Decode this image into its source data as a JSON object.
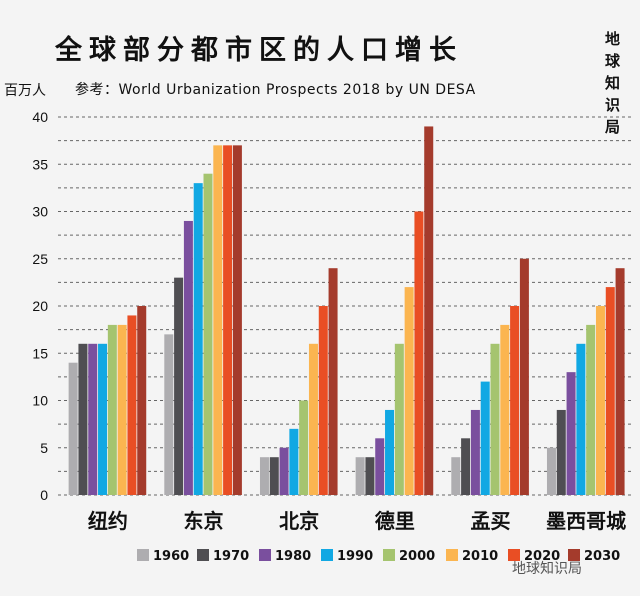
{
  "chart_data": {
    "type": "bar",
    "title": "全球部分都市区的人口增长",
    "subtitle": "参考：World Urbanization Prospects 2018 by UN DESA",
    "ylabel": "百万人",
    "ylim": [
      0,
      40
    ],
    "yticks": [
      0,
      5,
      10,
      15,
      20,
      25,
      30,
      35,
      40
    ],
    "grid": true,
    "legend_position": "bottom",
    "categories": [
      "纽约",
      "东京",
      "北京",
      "德里",
      "孟买",
      "墨西哥城"
    ],
    "series": [
      {
        "name": "1960",
        "color": "#aeadb0",
        "values": [
          14,
          17,
          4,
          4,
          4,
          5
        ]
      },
      {
        "name": "1970",
        "color": "#4f4e52",
        "values": [
          16,
          23,
          4,
          4,
          6,
          9
        ]
      },
      {
        "name": "1980",
        "color": "#7a4f9e",
        "values": [
          16,
          29,
          5,
          6,
          9,
          13
        ]
      },
      {
        "name": "1990",
        "color": "#11a8e3",
        "values": [
          16,
          33,
          7,
          9,
          12,
          16
        ]
      },
      {
        "name": "2000",
        "color": "#a5c46f",
        "values": [
          18,
          34,
          10,
          16,
          16,
          18
        ]
      },
      {
        "name": "2010",
        "color": "#fbb550",
        "values": [
          18,
          37,
          16,
          22,
          18,
          20
        ]
      },
      {
        "name": "2020",
        "color": "#e94e24",
        "values": [
          19,
          37,
          20,
          30,
          20,
          22
        ]
      },
      {
        "name": "2030",
        "color": "#a43b2c",
        "values": [
          20,
          37,
          24,
          39,
          25,
          24
        ]
      }
    ]
  },
  "brand": "地球知识局",
  "watermark": "地球知识局"
}
